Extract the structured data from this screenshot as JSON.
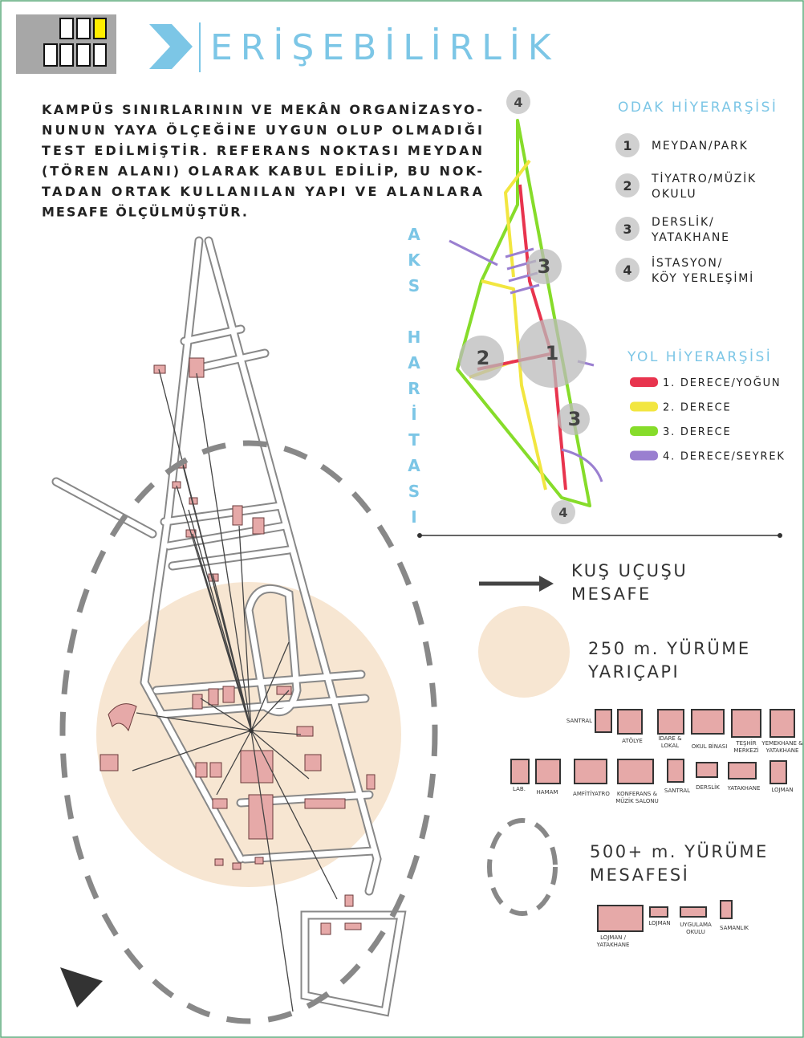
{
  "header": {
    "title": "ERİŞEBİLİRLİK"
  },
  "intro": {
    "lines": [
      "KAMPÜS SINIRLARININ VE MEKÂN ORGANİZASYO-",
      "NUNUN YAYA ÖLÇEĞİNE  UYGUN OLUP OLMADIĞI",
      "TEST EDİLMİŞTİR. REFERANS NOKTASI MEYDAN",
      "(TÖREN ALANI) OLARAK KABUL  EDİLİP, BU NOK-",
      "TADAN ORTAK KULLANILAN YAPI VE ALANLARA",
      "MESAFE ÖLÇÜLMÜŞTÜR."
    ]
  },
  "axis_map_label": "AKS HARİTASI",
  "map_markers": [
    "4",
    "1",
    "2",
    "3",
    "3",
    "4"
  ],
  "focus_hierarchy": {
    "title": "ODAK HİYERARŞİSİ",
    "items": [
      {
        "number": "1",
        "lines": [
          "MEYDAN/PARK"
        ]
      },
      {
        "number": "2",
        "lines": [
          "TİYATRO/MÜZİK",
          "OKULU"
        ]
      },
      {
        "number": "3",
        "lines": [
          "DERSLİK/",
          "YATAKHANE"
        ]
      },
      {
        "number": "4",
        "lines": [
          "İSTASYON/",
          "KÖY YERLEŞİMİ"
        ]
      }
    ]
  },
  "road_hierarchy": {
    "title": "YOL HİYERARŞİSİ",
    "items": [
      {
        "label": "1. DERECE/YOĞUN",
        "color": "#e8344e"
      },
      {
        "label": "2. DERECE",
        "color": "#f2e640"
      },
      {
        "label": "3. DERECE",
        "color": "#86dc2a"
      },
      {
        "label": "4. DERECE/SEYREK",
        "color": "#9a7fd0"
      }
    ]
  },
  "legend": {
    "bird_flight": [
      "KUŞ UÇUŞU",
      "MESAFE"
    ],
    "walk_250": [
      "250 m. YÜRÜME",
      "YARIÇAPI"
    ],
    "walk_500": [
      "500+ m. YÜRÜME",
      "MESAFESİ"
    ]
  },
  "buildings_250": [
    {
      "lines": [
        "SANTRAL"
      ]
    },
    {
      "lines": [
        "ATÖLYE"
      ]
    },
    {
      "lines": [
        "İDARE &",
        "LOKAL"
      ]
    },
    {
      "lines": [
        "OKUL BİNASI"
      ]
    },
    {
      "lines": [
        "TEŞHİR",
        "MERKEZİ"
      ]
    },
    {
      "lines": [
        "YEMEKHANE &",
        "YATAKHANE"
      ]
    },
    {
      "lines": [
        "LAB."
      ]
    },
    {
      "lines": [
        "HAMAM"
      ]
    },
    {
      "lines": [
        "AMFİTİYATRO"
      ]
    },
    {
      "lines": [
        "KONFERANS &",
        "MÜZİK SALONU"
      ]
    },
    {
      "lines": [
        "SANTRAL"
      ]
    },
    {
      "lines": [
        "DERSLİK"
      ]
    },
    {
      "lines": [
        "YATAKHANE"
      ]
    },
    {
      "lines": [
        "LOJMAN"
      ]
    }
  ],
  "buildings_500": [
    {
      "lines": [
        "LOJMAN /",
        "YATAKHANE"
      ]
    },
    {
      "lines": [
        "LOJMAN"
      ]
    },
    {
      "lines": [
        "UYGULAMA",
        "OKULU"
      ]
    },
    {
      "lines": [
        "SAMANLIK"
      ]
    }
  ]
}
